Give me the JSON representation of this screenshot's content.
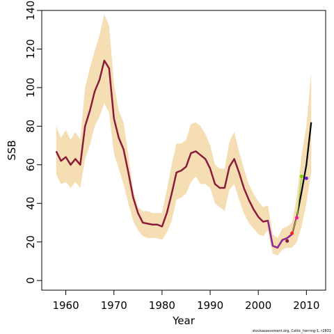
{
  "chart_data": {
    "type": "line",
    "xlabel": "Year",
    "ylabel": "SSB",
    "xlim": [
      1955,
      2014
    ],
    "ylim": [
      -5,
      140
    ],
    "x_ticks": [
      1960,
      1970,
      1980,
      1990,
      2000,
      2010
    ],
    "y_ticks": [
      0,
      20,
      40,
      60,
      80,
      100,
      120,
      140
    ],
    "x_tick_labels": [
      "1960",
      "1970",
      "1980",
      "1990",
      "2000",
      "2010"
    ],
    "y_tick_labels": [
      "0",
      "20",
      "40",
      "60",
      "80",
      "100",
      "120",
      "140"
    ],
    "credit": "stockassessment.org, Celtic_herring-1, r2831",
    "colors": {
      "band": "#f5deb3",
      "estimate": "#8b1a3a",
      "current_overlay": "#8a2be2",
      "forecast": "#000000"
    },
    "confidence_band": {
      "x": [
        1958,
        1959,
        1960,
        1961,
        1962,
        1963,
        1964,
        1965,
        1966,
        1967,
        1968,
        1969,
        1970,
        1971,
        1972,
        1973,
        1974,
        1975,
        1976,
        1977,
        1978,
        1979,
        1980,
        1981,
        1982,
        1983,
        1984,
        1985,
        1986,
        1987,
        1988,
        1989,
        1990,
        1991,
        1992,
        1993,
        1994,
        1995,
        1996,
        1997,
        1998,
        1999,
        2000,
        2001,
        2002,
        2003,
        2004,
        2005,
        2006,
        2007,
        2008,
        2009,
        2010,
        2011
      ],
      "upper": [
        80,
        74,
        78,
        73,
        77,
        73,
        100,
        110,
        119,
        127,
        138,
        132,
        102,
        88,
        82,
        65,
        47,
        38,
        36,
        36,
        35,
        35,
        35,
        47,
        60,
        71,
        71,
        73,
        81,
        82,
        80,
        76,
        70,
        60,
        58,
        58,
        72,
        77,
        67,
        58,
        50,
        45,
        41,
        38,
        39,
        24,
        22,
        27,
        28,
        30,
        43,
        65,
        80,
        108
      ],
      "lower": [
        55,
        50,
        51,
        48,
        51,
        48,
        63,
        70,
        80,
        85,
        92,
        87,
        66,
        58,
        50,
        40,
        31,
        26,
        23,
        22,
        22,
        22,
        21,
        25,
        31,
        42,
        43,
        45,
        51,
        54,
        50,
        50,
        48,
        40,
        38,
        36,
        47,
        50,
        42,
        35,
        30,
        27,
        24,
        23,
        26,
        14,
        13,
        16,
        17,
        17,
        20,
        28,
        40,
        56
      ]
    },
    "series": [
      {
        "x": [
          1958,
          1959,
          1960,
          1961,
          1962,
          1963,
          1964,
          1965,
          1966,
          1967,
          1968,
          1969,
          1970,
          1971,
          1972,
          1973,
          1974,
          1975,
          1976,
          1977,
          1978,
          1979,
          1980,
          1981,
          1982,
          1983,
          1984,
          1985,
          1986,
          1987,
          1988,
          1989,
          1990,
          1991,
          1992,
          1993,
          1994,
          1995,
          1996,
          1997,
          1998,
          1999,
          2000,
          2001,
          2002,
          2003,
          2004,
          2005,
          2006,
          2007,
          2008
        ],
        "values": [
          67,
          62,
          64,
          60,
          63,
          60,
          80,
          88,
          98,
          104,
          114,
          110,
          84,
          74,
          68,
          56,
          43,
          35,
          30,
          29.5,
          29,
          29,
          28,
          35,
          45,
          56,
          57,
          59,
          66,
          67,
          65,
          63,
          58,
          50,
          48,
          48,
          59,
          63,
          56,
          48,
          42,
          37,
          33,
          30.5,
          31,
          18,
          17,
          21,
          22,
          24,
          33
        ],
        "color": "#8b1a3a"
      },
      {
        "x": [
          2002,
          2003,
          2004,
          2005,
          2006,
          2007,
          2008
        ],
        "values": [
          31,
          18,
          17,
          21,
          22,
          24,
          33
        ],
        "color": "#8a2be2"
      },
      {
        "x": [
          2008,
          2009,
          2010,
          2011
        ],
        "values": [
          33,
          46,
          60,
          82
        ],
        "color": "#000000"
      },
      {
        "x": [
          2007,
          2008,
          2009
        ],
        "values": [
          25,
          32,
          54
        ],
        "color": "#9acd32"
      }
    ],
    "points": [
      {
        "x": 2006,
        "y": 20.5,
        "color": "#8b1a3a"
      },
      {
        "x": 2007,
        "y": 24.5,
        "color": "#ff2222"
      },
      {
        "x": 2008,
        "y": 32.5,
        "color": "#ff1493"
      },
      {
        "x": 2009,
        "y": 54,
        "color": "#7fcc00"
      },
      {
        "x": 2010,
        "y": 53,
        "color": "#6a1bd0"
      }
    ]
  }
}
